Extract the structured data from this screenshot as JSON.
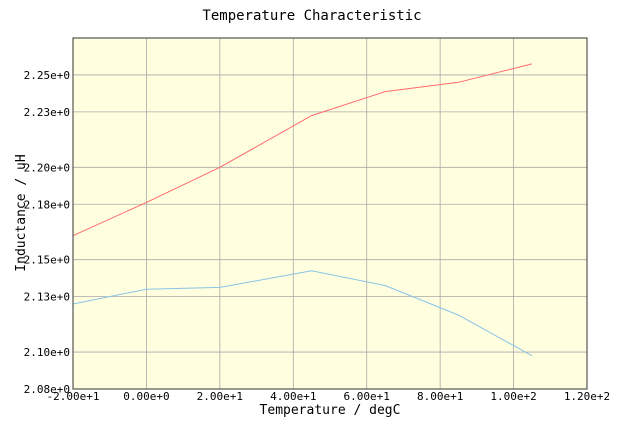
{
  "chart_data": {
    "type": "line",
    "title": "Temperature Characteristic",
    "xlabel": "Temperature / degC",
    "ylabel": "Inductance / uH",
    "xlim": [
      -20,
      120
    ],
    "ylim": [
      2.08,
      2.27
    ],
    "x_ticks": [
      -20,
      0,
      20,
      40,
      60,
      80,
      100,
      120
    ],
    "x_tick_labels": [
      "-2.00e+1",
      "0.00e+0",
      "2.00e+1",
      "4.00e+1",
      "6.00e+1",
      "8.00e+1",
      "1.00e+2",
      "1.20e+2"
    ],
    "y_ticks": [
      2.08,
      2.1,
      2.13,
      2.15,
      2.18,
      2.2,
      2.23,
      2.25
    ],
    "y_tick_labels": [
      "2.08e+0",
      "2.10e+0",
      "2.13e+0",
      "2.15e+0",
      "2.18e+0",
      "2.20e+0",
      "2.23e+0",
      "2.25e+0"
    ],
    "grid": true,
    "plot_background": "#ffffe0",
    "series": [
      {
        "color": "#ff6b6b",
        "x": [
          -20,
          0,
          20,
          45,
          65,
          85,
          105
        ],
        "y": [
          2.163,
          2.181,
          2.2,
          2.228,
          2.241,
          2.246,
          2.256
        ]
      },
      {
        "color": "#88c4e8",
        "x": [
          -20,
          0,
          20,
          45,
          65,
          85,
          105
        ],
        "y": [
          2.126,
          2.134,
          2.135,
          2.144,
          2.136,
          2.12,
          2.098
        ]
      }
    ]
  }
}
